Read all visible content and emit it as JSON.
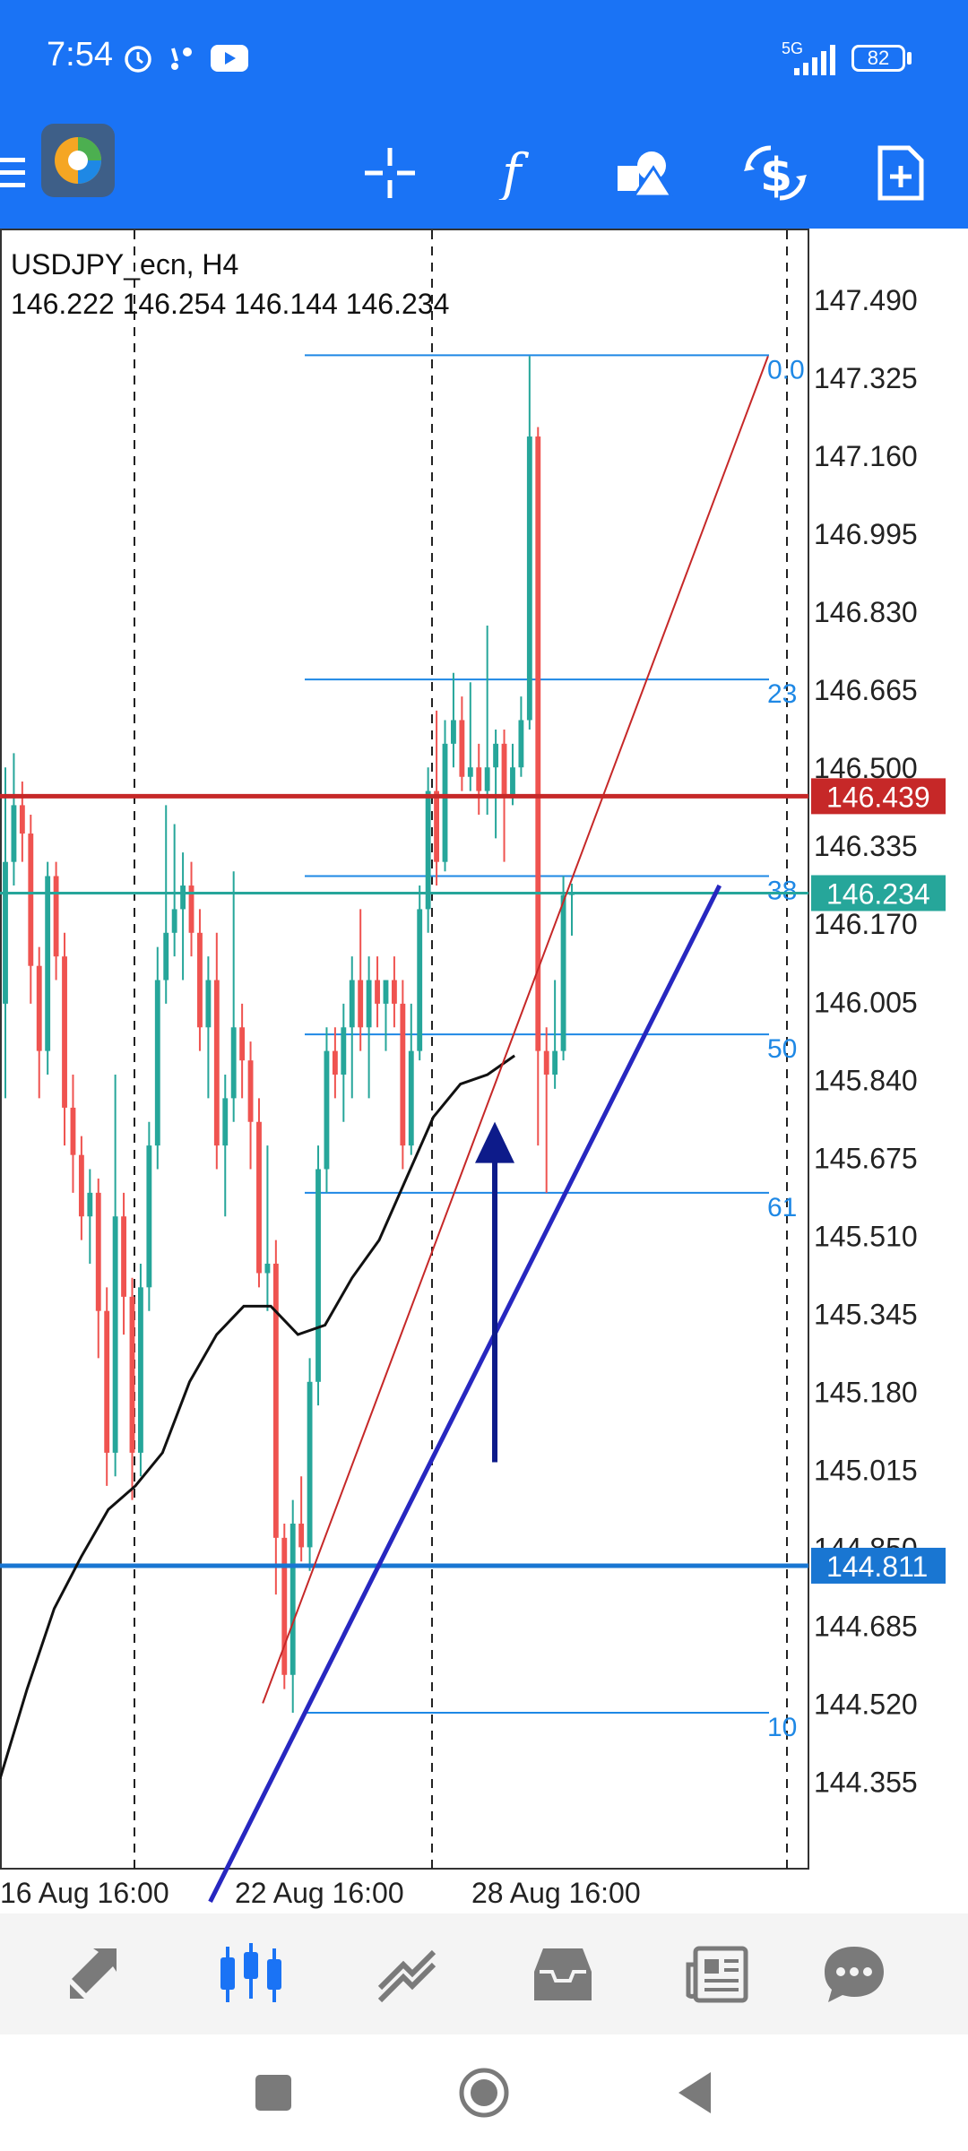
{
  "status_bar": {
    "time": "7:54",
    "network": "5G",
    "battery": "82"
  },
  "toolbar": {
    "menu_icon": "menu-icon",
    "app_logo": "metatrader-logo",
    "buttons": [
      "crosshair-icon",
      "indicators-icon",
      "objects-icon",
      "trade-icon",
      "new-order-icon"
    ]
  },
  "chart_header": {
    "symbol": "USDJPY_ecn, H4",
    "ohlc": "146.222 146.254 146.144 146.234"
  },
  "colors": {
    "bull": "#26a69a",
    "bear": "#ef5350",
    "accent": "#1a73f5",
    "resistance": "#c62828",
    "support": "#1976d2",
    "current_price": "#26a69a",
    "trendline": "#2727c0",
    "fib": "#1e88e5"
  },
  "chart_data": {
    "type": "candlestick",
    "price_axis": [
      "147.490",
      "147.325",
      "147.160",
      "146.995",
      "146.830",
      "146.665",
      "146.500",
      "146.335",
      "146.170",
      "146.005",
      "145.840",
      "145.675",
      "145.510",
      "145.345",
      "145.180",
      "145.015",
      "144.850",
      "144.685",
      "144.520",
      "144.355"
    ],
    "time_axis": [
      "16 Aug 16:00",
      "22 Aug 16:00",
      "28 Aug 16:00"
    ],
    "ylim": [
      144.17,
      147.64
    ],
    "horizontal_lines": [
      {
        "label": "146.439",
        "price": 146.439,
        "color": "#c62828"
      },
      {
        "label": "146.234",
        "price": 146.234,
        "color": "#26a69a"
      },
      {
        "label": "144.811",
        "price": 144.811,
        "color": "#1976d2"
      }
    ],
    "fibonacci_levels": [
      {
        "label": "0.0",
        "price": 147.372
      },
      {
        "label": "23",
        "price": 146.686
      },
      {
        "label": "38",
        "price": 146.27
      },
      {
        "label": "50",
        "price": 145.935
      },
      {
        "label": "61",
        "price": 145.6
      },
      {
        "label": "10",
        "price": 144.5
      }
    ],
    "candles": [
      [
        146.0,
        146.3,
        146.5,
        145.8
      ],
      [
        146.3,
        146.42,
        146.53,
        146.25
      ],
      [
        146.42,
        146.36,
        146.47,
        146.3
      ],
      [
        146.36,
        146.08,
        146.4,
        146.0
      ],
      [
        146.08,
        145.9,
        146.12,
        145.8
      ],
      [
        145.9,
        146.27,
        146.3,
        145.85
      ],
      [
        146.27,
        146.1,
        146.3,
        146.05
      ],
      [
        146.1,
        145.78,
        146.15,
        145.7
      ],
      [
        145.78,
        145.68,
        145.85,
        145.6
      ],
      [
        145.68,
        145.55,
        145.72,
        145.5
      ],
      [
        145.55,
        145.6,
        145.65,
        145.45
      ],
      [
        145.6,
        145.35,
        145.63,
        145.25
      ],
      [
        145.35,
        145.05,
        145.4,
        144.98
      ],
      [
        145.05,
        145.55,
        145.85,
        145.0
      ],
      [
        145.55,
        145.38,
        145.6,
        145.3
      ],
      [
        145.38,
        145.05,
        145.42,
        144.95
      ],
      [
        145.05,
        145.4,
        145.45,
        145.0
      ],
      [
        145.4,
        145.7,
        145.75,
        145.35
      ],
      [
        145.7,
        146.05,
        146.12,
        145.65
      ],
      [
        146.05,
        146.15,
        146.42,
        146.0
      ],
      [
        146.15,
        146.2,
        146.38,
        146.1
      ],
      [
        146.2,
        146.25,
        146.32,
        146.05
      ],
      [
        146.25,
        146.15,
        146.3,
        146.1
      ],
      [
        146.15,
        145.95,
        146.2,
        145.9
      ],
      [
        145.95,
        146.05,
        146.1,
        145.8
      ],
      [
        146.05,
        145.7,
        146.15,
        145.65
      ],
      [
        145.7,
        145.8,
        145.85,
        145.55
      ],
      [
        145.8,
        145.95,
        146.28,
        145.75
      ],
      [
        145.95,
        145.88,
        146.0,
        145.8
      ],
      [
        145.88,
        145.75,
        145.92,
        145.65
      ],
      [
        145.75,
        145.43,
        145.8,
        145.4
      ],
      [
        145.43,
        145.45,
        145.7,
        145.35
      ],
      [
        145.45,
        144.87,
        145.5,
        144.75
      ],
      [
        144.87,
        144.58,
        144.9,
        144.55
      ],
      [
        144.58,
        144.9,
        144.95,
        144.5
      ],
      [
        144.9,
        144.85,
        145.0,
        144.82
      ],
      [
        144.85,
        145.2,
        145.25,
        144.8
      ],
      [
        145.2,
        145.65,
        145.7,
        145.15
      ],
      [
        145.65,
        145.9,
        145.95,
        145.6
      ],
      [
        145.9,
        145.85,
        145.95,
        145.8
      ],
      [
        145.85,
        145.95,
        146.0,
        145.75
      ],
      [
        145.95,
        146.05,
        146.1,
        145.8
      ],
      [
        146.05,
        145.95,
        146.2,
        145.9
      ],
      [
        145.95,
        146.05,
        146.1,
        145.8
      ],
      [
        146.05,
        146.0,
        146.1,
        145.95
      ],
      [
        146.0,
        146.05,
        146.05,
        145.9
      ],
      [
        146.05,
        146.0,
        146.1,
        145.95
      ],
      [
        146.0,
        145.7,
        146.05,
        145.65
      ],
      [
        145.7,
        145.9,
        146.0,
        145.68
      ],
      [
        145.9,
        146.2,
        146.25,
        145.88
      ],
      [
        146.2,
        146.45,
        146.5,
        146.15
      ],
      [
        146.45,
        146.3,
        146.62,
        146.25
      ],
      [
        146.3,
        146.55,
        146.6,
        146.28
      ],
      [
        146.55,
        146.6,
        146.7,
        146.5
      ],
      [
        146.6,
        146.48,
        146.65,
        146.45
      ],
      [
        146.48,
        146.5,
        146.68,
        146.45
      ],
      [
        146.5,
        146.45,
        146.55,
        146.4
      ],
      [
        146.45,
        146.5,
        146.8,
        146.4
      ],
      [
        146.5,
        146.55,
        146.58,
        146.35
      ],
      [
        146.55,
        146.44,
        146.58,
        146.3
      ],
      [
        146.44,
        146.5,
        146.55,
        146.42
      ],
      [
        146.5,
        146.6,
        146.65,
        146.48
      ],
      [
        146.6,
        147.2,
        147.37,
        146.58
      ],
      [
        147.2,
        145.9,
        147.22,
        145.7
      ],
      [
        145.9,
        145.85,
        145.95,
        145.6
      ],
      [
        145.85,
        145.9,
        146.05,
        145.82
      ],
      [
        145.9,
        146.23,
        146.27,
        145.88
      ],
      [
        146.23,
        146.234,
        146.254,
        146.144
      ]
    ],
    "moving_average": [
      [
        0,
        144.36
      ],
      [
        0.05,
        144.55
      ],
      [
        0.1,
        144.72
      ],
      [
        0.15,
        144.83
      ],
      [
        0.2,
        144.93
      ],
      [
        0.25,
        144.98
      ],
      [
        0.3,
        145.05
      ],
      [
        0.35,
        145.2
      ],
      [
        0.4,
        145.3
      ],
      [
        0.45,
        145.36
      ],
      [
        0.5,
        145.36
      ],
      [
        0.55,
        145.3
      ],
      [
        0.6,
        145.32
      ],
      [
        0.65,
        145.42
      ],
      [
        0.7,
        145.5
      ],
      [
        0.75,
        145.63
      ],
      [
        0.8,
        145.76
      ],
      [
        0.85,
        145.83
      ],
      [
        0.9,
        145.85
      ],
      [
        0.95,
        145.89
      ]
    ],
    "trendlines": [
      {
        "name": "steep",
        "from": [
          0.325,
          144.52
        ],
        "to": [
          0.95,
          147.37
        ],
        "color": "#c62828"
      },
      {
        "name": "channel",
        "from": [
          0.26,
          144.1
        ],
        "to": [
          0.89,
          146.25
        ],
        "color": "#2727c0"
      }
    ],
    "arrow": {
      "from": [
        0.68,
        145.03
      ],
      "to": [
        0.68,
        145.72
      ],
      "color": "#0d1b8a"
    }
  },
  "bottom_nav": [
    "quotes-icon",
    "chart-icon",
    "trade-icon",
    "history-icon",
    "news-icon",
    "messages-icon"
  ],
  "system_nav": [
    "recents-icon",
    "home-icon",
    "back-icon"
  ]
}
